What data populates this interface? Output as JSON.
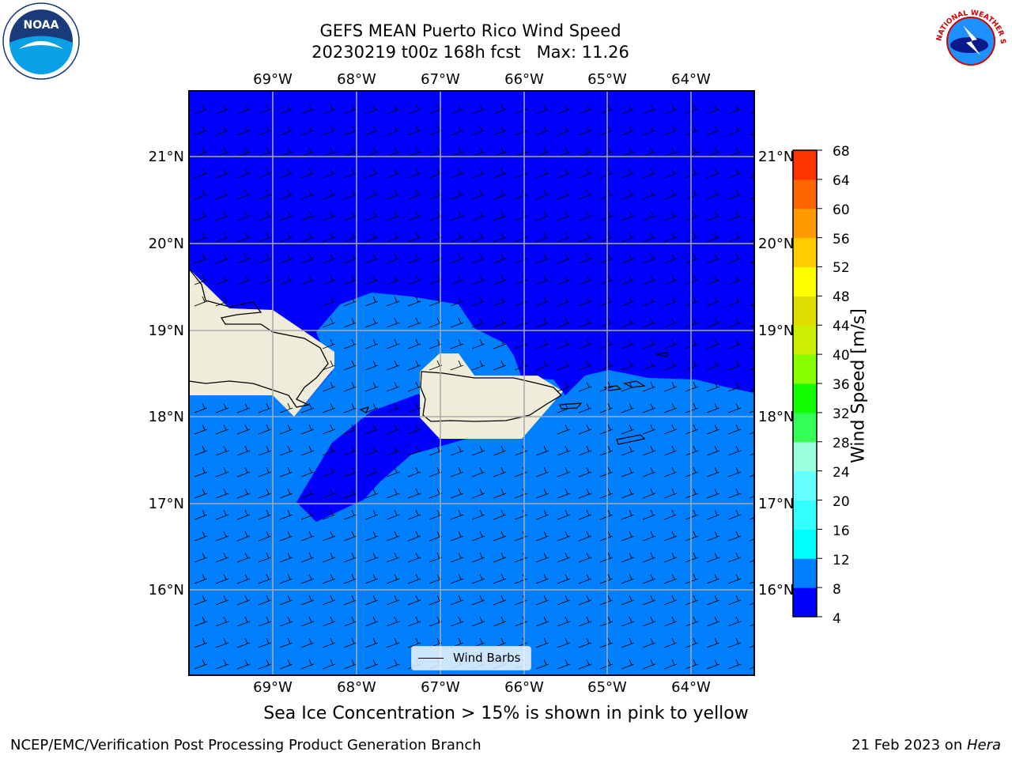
{
  "title": {
    "line1": "GEFS MEAN Puerto Rico Wind Speed",
    "line2": "20230219 t00z 168h fcst   Max: 11.26"
  },
  "map": {
    "lon_labels": [
      "69°W",
      "68°W",
      "67°W",
      "66°W",
      "65°W",
      "64°W"
    ],
    "lat_labels": [
      "21°N",
      "20°N",
      "19°N",
      "18°N",
      "17°N",
      "16°N"
    ],
    "lon_values": [
      -69,
      -68,
      -67,
      -66,
      -65,
      -64
    ],
    "lat_values": [
      21,
      20,
      19,
      18,
      17,
      16
    ],
    "ocean_color_low": "#0000ff",
    "ocean_color_mid": "#0080ff",
    "land_color": "#efedd9"
  },
  "legend": {
    "label": "Wind Barbs"
  },
  "colorbar": {
    "label": "Wind Speed [m/s]",
    "ticks": [
      "68",
      "64",
      "60",
      "56",
      "52",
      "48",
      "44",
      "40",
      "36",
      "32",
      "28",
      "24",
      "20",
      "16",
      "12",
      "8",
      "4"
    ],
    "colors": [
      "#0000ff",
      "#0080ff",
      "#00ffff",
      "#33ffff",
      "#66ffff",
      "#99ffdd",
      "#33ff55",
      "#11ff00",
      "#88ff00",
      "#ccee00",
      "#dddd00",
      "#ffff00",
      "#ffcc00",
      "#ff9900",
      "#ff6600",
      "#ff3300",
      "#ff0000"
    ]
  },
  "caption": "Sea Ice Concentration > 15% is shown in pink to yellow",
  "footer": {
    "left": "NCEP/EMC/Verification Post Processing Product Generation Branch",
    "right_date": "21 Feb 2023 on ",
    "right_system": "Hera"
  },
  "logos": {
    "noaa_text": "NOAA",
    "nws_text": "NATIONAL WEATHER SERVICE"
  }
}
